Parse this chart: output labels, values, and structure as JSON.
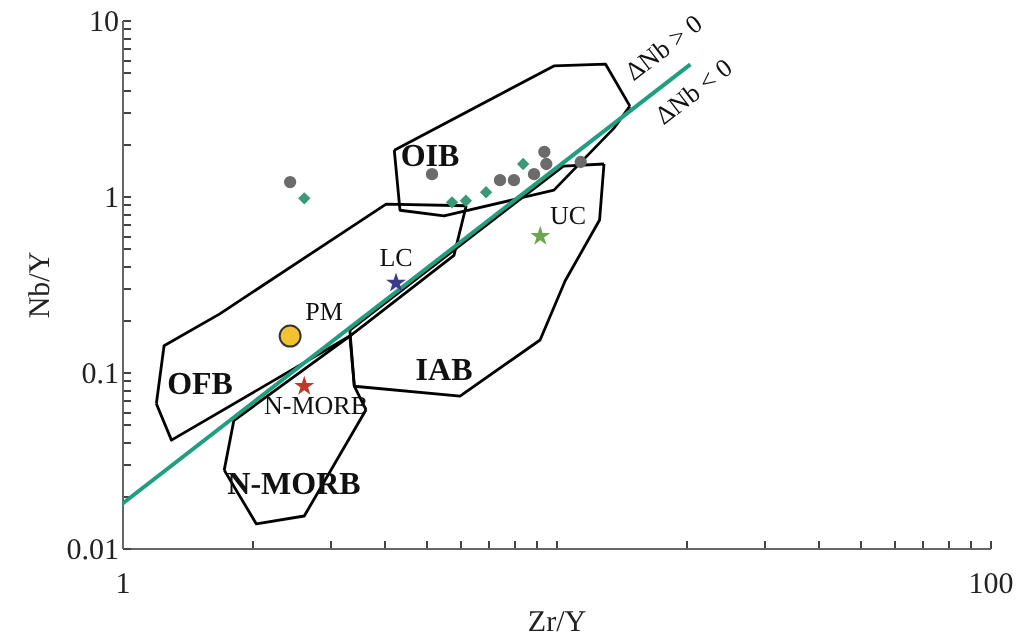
{
  "chart_data": {
    "type": "scatter",
    "xlabel": "Zr/Y",
    "ylabel": "Nb/Y",
    "log": "xy",
    "grid": false,
    "xlim": [
      1,
      100
    ],
    "ylim": [
      0.01,
      10
    ],
    "xticks": [
      1,
      {
        "value": 2,
        "label": null
      },
      {
        "value": 3,
        "label": null
      },
      {
        "value": 4,
        "label": null
      },
      {
        "value": 5,
        "label": null
      },
      {
        "value": 6,
        "label": null
      },
      {
        "value": 7,
        "label": null
      },
      {
        "value": 8,
        "label": null
      },
      {
        "value": 9,
        "label": null
      },
      {
        "value": 10,
        "label": null
      },
      {
        "value": 20,
        "label": null
      },
      {
        "value": 30,
        "label": null
      },
      {
        "value": 40,
        "label": null
      },
      {
        "value": 50,
        "label": null
      },
      {
        "value": 60,
        "label": null
      },
      {
        "value": 70,
        "label": null
      },
      {
        "value": 80,
        "label": null
      },
      {
        "value": 90,
        "label": null
      },
      100
    ],
    "yticks": [
      0.01,
      {
        "value": 0.02,
        "label": null
      },
      {
        "value": 0.03,
        "label": null
      },
      {
        "value": 0.04,
        "label": null
      },
      {
        "value": 0.05,
        "label": null
      },
      {
        "value": 0.06,
        "label": null
      },
      {
        "value": 0.07,
        "label": null
      },
      {
        "value": 0.08,
        "label": null
      },
      {
        "value": 0.09,
        "label": null
      },
      0.1,
      {
        "value": 0.2,
        "label": null
      },
      {
        "value": 0.3,
        "label": null
      },
      {
        "value": 0.4,
        "label": null
      },
      {
        "value": 0.5,
        "label": null
      },
      {
        "value": 0.6,
        "label": null
      },
      {
        "value": 0.7,
        "label": null
      },
      {
        "value": 0.8,
        "label": null
      },
      {
        "value": 0.9,
        "label": null
      },
      1,
      {
        "value": 2,
        "label": null
      },
      {
        "value": 3,
        "label": null
      },
      {
        "value": 4,
        "label": null
      },
      {
        "value": 5,
        "label": null
      },
      {
        "value": 6,
        "label": null
      },
      {
        "value": 7,
        "label": null
      },
      {
        "value": 8,
        "label": null
      },
      {
        "value": 9,
        "label": null
      },
      10
    ],
    "series": [
      {
        "type": "line",
        "name": "OIB",
        "color": "#000000",
        "x": [
          4.24,
          9.89,
          13.0,
          14.8
        ],
        "values": [
          1.82,
          5.48,
          5.62,
          3.24
        ]
      },
      {
        "type": "line",
        "color": "#000000",
        "x": [
          4.24,
          4.37,
          5.52,
          9.89,
          13.6,
          14.8
        ],
        "values": [
          1.82,
          0.83,
          0.77,
          1.08,
          2.43,
          3.24
        ]
      },
      {
        "type": "line",
        "name": "OFB",
        "color": "#000000",
        "x": [
          1.2,
          1.25,
          1.68,
          4.06,
          6.21
        ],
        "values": [
          0.066,
          0.141,
          0.214,
          0.9,
          0.88
        ]
      },
      {
        "type": "line",
        "color": "#000000",
        "x": [
          1.2,
          1.3,
          3.35,
          5.82,
          6.21
        ],
        "values": [
          0.066,
          0.041,
          0.16,
          0.46,
          0.88
        ]
      },
      {
        "type": "line",
        "name": "IAB",
        "color": "#000000",
        "x": [
          3.35,
          10.4,
          12.9
        ],
        "values": [
          0.173,
          1.48,
          1.52
        ]
      },
      {
        "type": "line",
        "color": "#000000",
        "x": [
          3.35,
          3.43,
          6.01,
          9.19,
          10.5,
          12.6,
          12.9
        ],
        "values": [
          0.173,
          0.083,
          0.073,
          0.152,
          0.33,
          0.73,
          1.52
        ]
      },
      {
        "type": "line",
        "name": "N-MORB",
        "color": "#000000",
        "x": [
          1.72,
          1.81,
          3.35,
          3.43,
          3.65
        ],
        "values": [
          0.0277,
          0.053,
          0.16,
          0.083,
          0.061
        ]
      },
      {
        "type": "line",
        "color": "#000000",
        "x": [
          1.72,
          2.04,
          2.63,
          3.65
        ],
        "values": [
          0.0277,
          0.0137,
          0.0152,
          0.061
        ]
      },
      {
        "type": "line",
        "color": "#1f9e80",
        "x": [
          1,
          20.4
        ],
        "values": [
          0.0178,
          5.6
        ]
      },
      {
        "marker": "circle",
        "color": "#6b6b6b",
        "x": [
          2.44,
          5.18,
          7.43,
          8.0,
          8.9,
          9.4,
          9.5,
          11.4
        ],
        "values": [
          1.2,
          1.33,
          1.23,
          1.23,
          1.33,
          1.78,
          1.52,
          1.56
        ]
      },
      {
        "marker": "diamond",
        "color": "#3a9a78",
        "x": [
          2.63,
          5.76,
          6.2,
          6.9,
          8.4
        ],
        "values": [
          0.97,
          0.92,
          0.94,
          1.05,
          1.52
        ]
      },
      {
        "name": "PM",
        "marker": "circle",
        "color": "#f2c230",
        "x": [
          2.44
        ],
        "values": [
          0.16
        ]
      },
      {
        "name": "LC",
        "marker": "star",
        "color": "#3b3b8f",
        "x": [
          4.28
        ],
        "values": [
          0.32
        ]
      },
      {
        "name": "UC",
        "marker": "star",
        "color": "#6aa84f",
        "x": [
          9.2
        ],
        "values": [
          0.59
        ]
      },
      {
        "name": "N-MORB",
        "marker": "star",
        "color": "#c0392b",
        "x": [
          2.63
        ],
        "values": [
          0.083
        ]
      }
    ],
    "annotations": [
      "ΔNb > 0",
      "ΔNb < 0"
    ]
  }
}
